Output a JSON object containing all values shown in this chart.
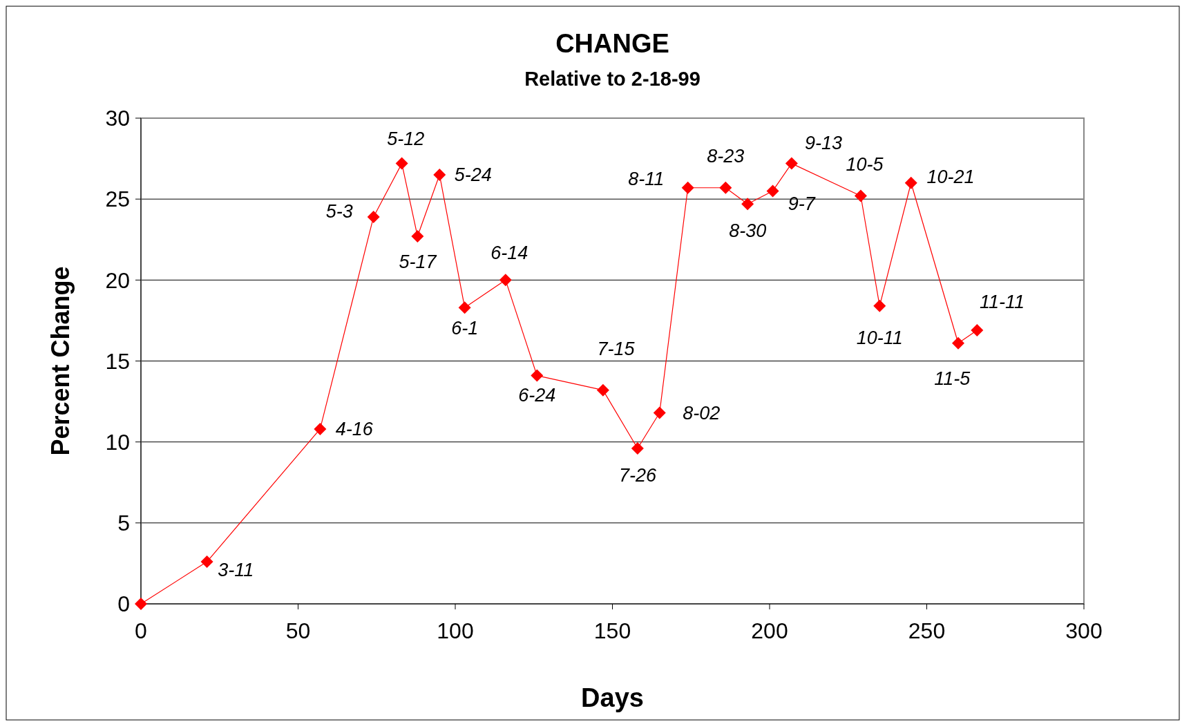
{
  "chart_data": {
    "type": "line",
    "title": "CHANGE",
    "subtitle": "Relative to 2-18-99",
    "xlabel": "Days",
    "ylabel": "Percent Change",
    "x": [
      0,
      21,
      57,
      74,
      83,
      88,
      95,
      103,
      116,
      126,
      147,
      158,
      165,
      174,
      186,
      193,
      201,
      207,
      229,
      235,
      245,
      260,
      266
    ],
    "series": [
      {
        "color": "#ff0000",
        "values": [
          0,
          2.6,
          10.8,
          23.9,
          27.2,
          22.7,
          26.5,
          18.3,
          20.0,
          14.1,
          13.2,
          9.6,
          11.8,
          25.7,
          25.7,
          24.7,
          25.5,
          27.2,
          25.2,
          18.4,
          26.0,
          16.1,
          16.9
        ]
      }
    ],
    "xlim": [
      0,
      300
    ],
    "xticks": [
      0,
      50,
      100,
      150,
      200,
      250,
      300
    ],
    "ylim": [
      0,
      30
    ],
    "yticks": [
      0,
      5,
      10,
      15,
      20,
      25,
      30
    ],
    "grid": "y",
    "marker": "diamond",
    "line_style": "solid",
    "annotations": [
      {
        "text": "3-11",
        "x": 21,
        "y": 2.6
      },
      {
        "text": "4-16",
        "x": 57,
        "y": 10.8
      },
      {
        "text": "5-3",
        "x": 74,
        "y": 23.9
      },
      {
        "text": "5-12",
        "x": 83,
        "y": 27.2
      },
      {
        "text": "5-17",
        "x": 88,
        "y": 22.7
      },
      {
        "text": "5-24",
        "x": 95,
        "y": 26.5
      },
      {
        "text": "6-1",
        "x": 103,
        "y": 18.3
      },
      {
        "text": "6-14",
        "x": 116,
        "y": 20.0
      },
      {
        "text": "6-24",
        "x": 126,
        "y": 14.1
      },
      {
        "text": "7-15",
        "x": 147,
        "y": 13.2
      },
      {
        "text": "7-26",
        "x": 158,
        "y": 9.6
      },
      {
        "text": "8-02",
        "x": 165,
        "y": 11.8
      },
      {
        "text": "8-11",
        "x": 174,
        "y": 25.7
      },
      {
        "text": "8-23",
        "x": 186,
        "y": 25.7
      },
      {
        "text": "8-30",
        "x": 193,
        "y": 24.7
      },
      {
        "text": "9-7",
        "x": 201,
        "y": 25.5
      },
      {
        "text": "9-13",
        "x": 207,
        "y": 27.2
      },
      {
        "text": "10-5",
        "x": 229,
        "y": 25.2
      },
      {
        "text": "10-11",
        "x": 235,
        "y": 18.4
      },
      {
        "text": "10-21",
        "x": 245,
        "y": 26.0
      },
      {
        "text": "11-5",
        "x": 260,
        "y": 16.1
      },
      {
        "text": "11-11",
        "x": 266,
        "y": 16.9
      }
    ]
  }
}
